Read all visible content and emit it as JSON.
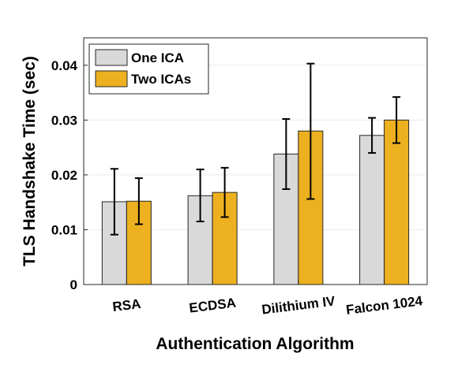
{
  "chart_data": {
    "type": "bar",
    "xlabel": "Authentication Algorithm",
    "ylabel": "TLS Handshake Time (sec)",
    "categories": [
      "RSA",
      "ECDSA",
      "Dilithium IV",
      "Falcon 1024"
    ],
    "ylim": [
      0,
      0.045
    ],
    "yticks": [
      0,
      0.01,
      0.02,
      0.03,
      0.04
    ],
    "ytick_labels": [
      "0",
      "0.01",
      "0.02",
      "0.03",
      "0.04"
    ],
    "grid": "horizontal",
    "legend_position": "top-left",
    "series": [
      {
        "name": "One ICA",
        "color": "#d9d9d9",
        "values": [
          0.0151,
          0.0162,
          0.0238,
          0.0272
        ],
        "error_low": [
          0.0091,
          0.0115,
          0.0174,
          0.024
        ],
        "error_high": [
          0.0211,
          0.021,
          0.0302,
          0.0304
        ]
      },
      {
        "name": "Two ICAs",
        "color": "#edb120",
        "values": [
          0.0152,
          0.0168,
          0.028,
          0.03
        ],
        "error_low": [
          0.011,
          0.0123,
          0.0156,
          0.0258
        ],
        "error_high": [
          0.0194,
          0.0213,
          0.0403,
          0.0342
        ]
      }
    ]
  }
}
